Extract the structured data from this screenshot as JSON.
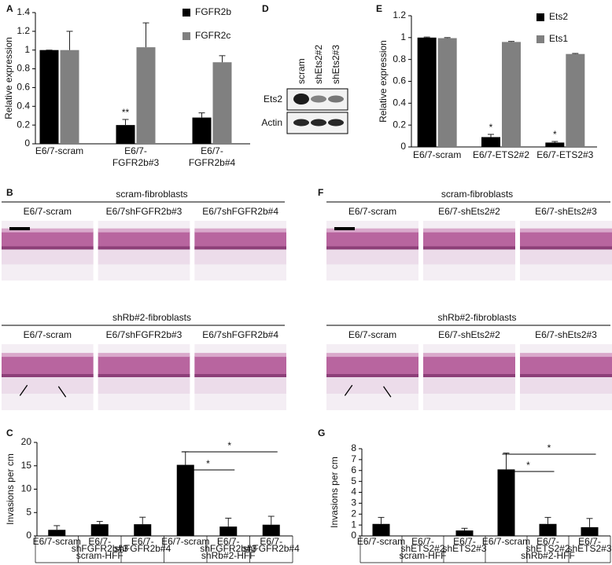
{
  "chart_data": [
    {
      "type": "bar",
      "panel": "A",
      "y_label": "Relative expression",
      "categories": [
        [
          "E6/7-scram"
        ],
        [
          "E6/7-",
          "FGFR2b#3"
        ],
        [
          "E6/7-",
          "FGFR2b#4"
        ]
      ],
      "series": [
        {
          "name": "FGFR2b",
          "color": "#000000",
          "values": [
            1,
            0.2,
            0.28
          ],
          "errors": [
            0,
            0.06,
            0.05
          ]
        },
        {
          "name": "FGFR2c",
          "color": "#808080",
          "values": [
            1,
            1.03,
            0.87
          ],
          "errors": [
            0.2,
            0.26,
            0.07
          ]
        }
      ],
      "ylim": [
        0,
        1.4
      ],
      "yticks": [
        0,
        0.2,
        0.4,
        0.6,
        0.8,
        1,
        1.2,
        1.4
      ],
      "annotations": [
        {
          "text": "**",
          "category": 1,
          "series": 0
        }
      ]
    },
    {
      "type": "bar",
      "panel": "E",
      "y_label": "Relative expression",
      "categories": [
        [
          "E6/7-scram"
        ],
        [
          "E6/7-ETS2#2"
        ],
        [
          "E6/7-ETS2#3"
        ]
      ],
      "series": [
        {
          "name": "Ets2",
          "color": "#000000",
          "values": [
            1,
            0.09,
            0.04
          ],
          "errors": [
            0.005,
            0.025,
            0.01
          ]
        },
        {
          "name": "Ets1",
          "color": "#808080",
          "values": [
            0.995,
            0.96,
            0.85
          ],
          "errors": [
            0.005,
            0.005,
            0.005
          ]
        }
      ],
      "ylim": [
        0,
        1.2
      ],
      "yticks": [
        0,
        0.2,
        0.4,
        0.6,
        0.8,
        1,
        1.2
      ],
      "annotations": [
        {
          "text": "*",
          "category": 1,
          "series": 0
        },
        {
          "text": "*",
          "category": 2,
          "series": 0
        }
      ]
    },
    {
      "type": "bar",
      "panel": "C",
      "y_label": "Invasions per cm",
      "categories": [
        [
          "E6/7-scram"
        ],
        [
          "E6/7-",
          "shFGFR2b#3"
        ],
        [
          "E6/7-",
          "shFGFR2b#4"
        ],
        [
          "E6/7-scram"
        ],
        [
          "E6/7-",
          "shFGFR2b#3"
        ],
        [
          "E6/7-",
          "shFGFR2b#4"
        ]
      ],
      "group_labels": [
        "scram-HFF",
        "shRb#2-HFF"
      ],
      "series": [
        {
          "color": "#000000",
          "values": [
            1.3,
            2.5,
            2.5,
            15.2,
            2.0,
            2.4
          ],
          "errors": [
            0.9,
            0.6,
            1.5,
            2.8,
            1.8,
            1.8
          ]
        }
      ],
      "ylim": [
        0,
        20
      ],
      "yticks": [
        0,
        5,
        10,
        15,
        20
      ],
      "brackets": [
        {
          "text": "*",
          "from": 3,
          "to": 4
        },
        {
          "text": "*",
          "from": 3,
          "to": 5
        }
      ]
    },
    {
      "type": "bar",
      "panel": "G",
      "y_label": "Invasions per cm",
      "categories": [
        [
          "E6/7-scram"
        ],
        [
          "E6/7-",
          "shETS2#2"
        ],
        [
          "E6/7-",
          "shETS2#3"
        ],
        [
          "E6/7-scram"
        ],
        [
          "E6/7-",
          "shETS2#2"
        ],
        [
          "E6/7-",
          "shETS2#3"
        ]
      ],
      "group_labels": [
        "scram-HFF",
        "shRb#2-HFF"
      ],
      "series": [
        {
          "color": "#000000",
          "values": [
            1.1,
            0,
            0.5,
            6.1,
            1.1,
            0.8
          ],
          "errors": [
            0.6,
            0,
            0.2,
            1.5,
            0.6,
            0.8
          ]
        }
      ],
      "ylim": [
        0,
        8
      ],
      "yticks": [
        0,
        1,
        2,
        3,
        4,
        5,
        6,
        7,
        8
      ],
      "brackets": [
        {
          "text": "*",
          "from": 3,
          "to": 4
        },
        {
          "text": "*",
          "from": 3,
          "to": 5
        }
      ]
    }
  ],
  "blot": {
    "panel": "D",
    "lanes": [
      "scram",
      "shEts2#2",
      "shEts2#3"
    ],
    "rows": [
      "Ets2",
      "Actin"
    ]
  },
  "micrographs": [
    {
      "panel": "B",
      "sections": [
        {
          "title": "scram-fibroblasts",
          "labels": [
            "E6/7-scram",
            "E6/7shFGFR2b#3",
            "E6/7shFGFR2b#4"
          ]
        },
        {
          "title": "shRb#2-fibroblasts",
          "labels": [
            "E6/7-scram",
            "E6/7shFGFR2b#3",
            "E6/7shFGFR2b#4"
          ]
        }
      ]
    },
    {
      "panel": "F",
      "sections": [
        {
          "title": "scram-fibroblasts",
          "labels": [
            "E6/7-scram",
            "E6/7-shEts2#2",
            "E6/7-shEts2#3"
          ]
        },
        {
          "title": "shRb#2-fibroblasts",
          "labels": [
            "E6/7-scram",
            "E6/7-shEts2#2",
            "E6/7-shEts2#3"
          ]
        }
      ]
    }
  ]
}
